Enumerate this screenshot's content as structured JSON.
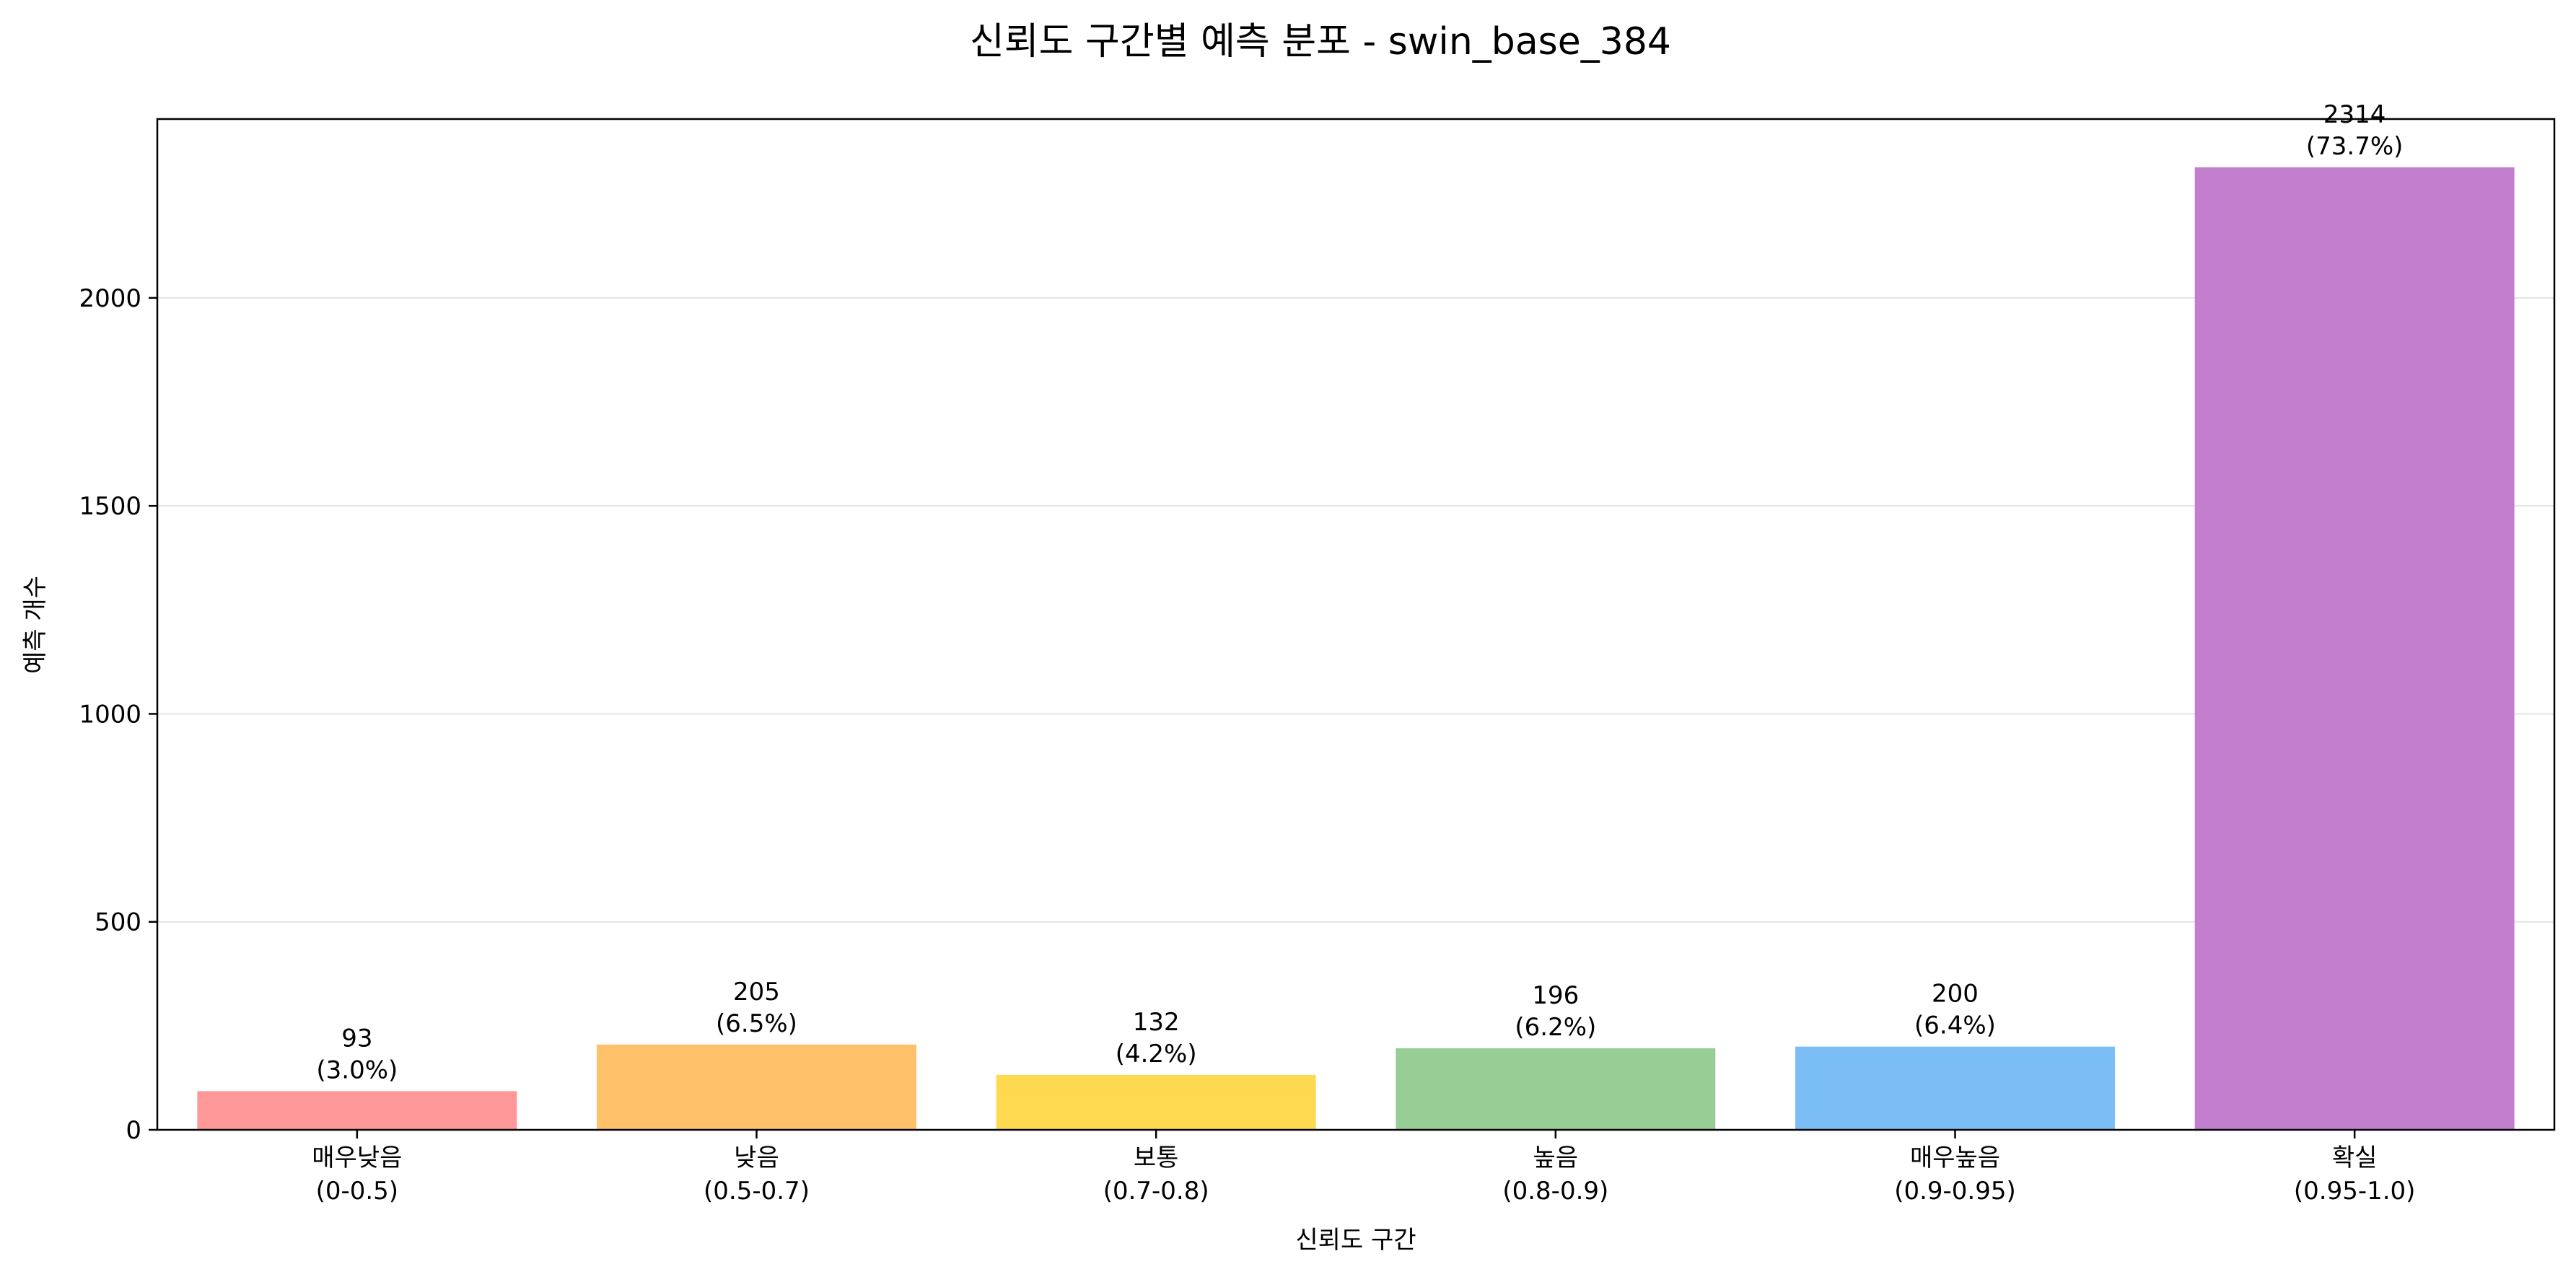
{
  "chart_data": {
    "type": "bar",
    "title": "신뢰도 구간별 예측 분포 - swin_base_384",
    "xlabel": "신뢰도 구간",
    "ylabel": "예측 개수",
    "categories": [
      {
        "name": "매우낮음",
        "range": "(0-0.5)"
      },
      {
        "name": "낮음",
        "range": "(0.5-0.7)"
      },
      {
        "name": "보통",
        "range": "(0.7-0.8)"
      },
      {
        "name": "높음",
        "range": "(0.8-0.9)"
      },
      {
        "name": "매우높음",
        "range": "(0.9-0.95)"
      },
      {
        "name": "확실",
        "range": "(0.95-1.0)"
      }
    ],
    "values": [
      93,
      205,
      132,
      196,
      200,
      2314
    ],
    "percent_labels": [
      "(3.0%)",
      "(6.5%)",
      "(4.2%)",
      "(6.2%)",
      "(6.4%)",
      "(73.7%)"
    ],
    "colors": [
      "#ff9999",
      "#ffc169",
      "#ffd94f",
      "#96ce96",
      "#7bbdf5",
      "#c27fcd"
    ],
    "ylim": [
      0,
      2430
    ],
    "yticks": [
      0,
      500,
      1000,
      1500,
      2000
    ],
    "grid": "y",
    "legend": "none"
  }
}
